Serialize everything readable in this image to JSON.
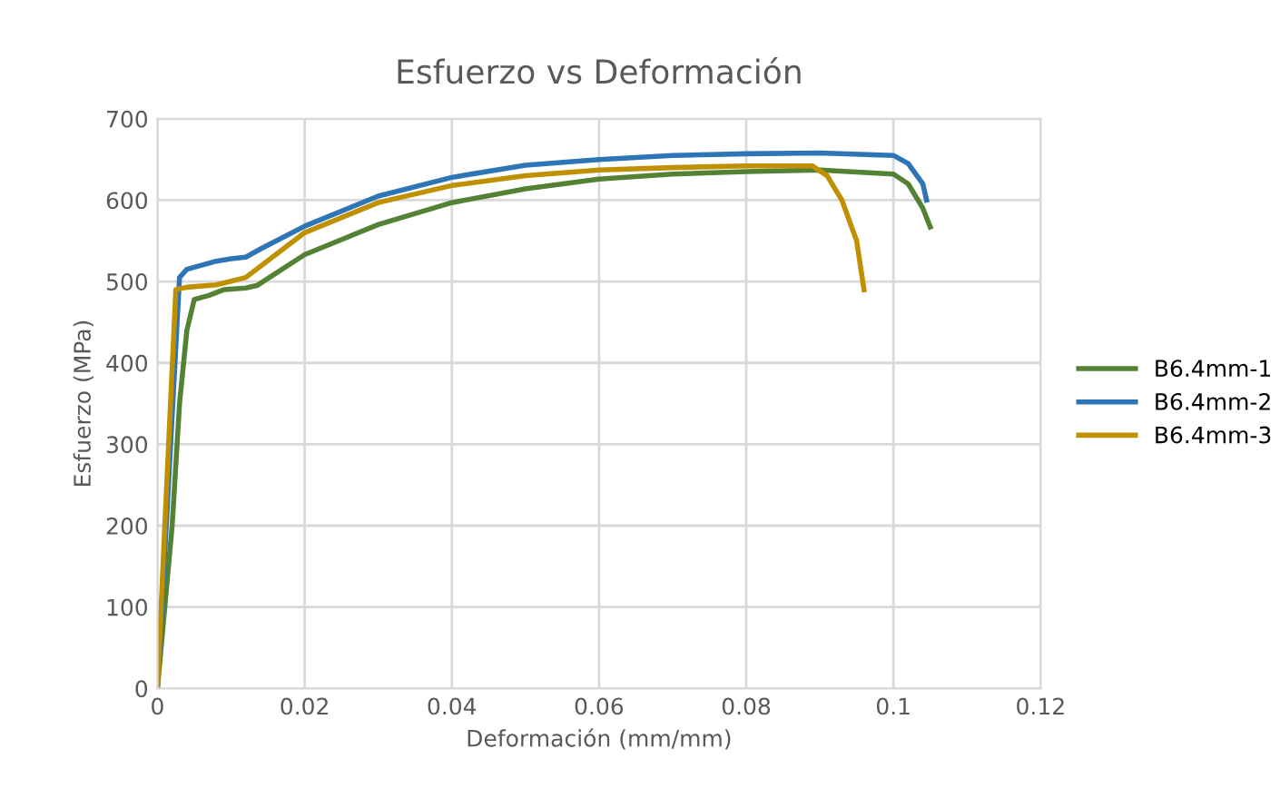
{
  "chart_data": {
    "type": "line",
    "title": "Esfuerzo vs Deformación",
    "xlabel": "Deformación (mm/mm)",
    "ylabel": "Esfuerzo (MPa)",
    "xlim": [
      0,
      0.12
    ],
    "xticks": [
      0,
      0.02,
      0.04,
      0.06,
      0.08,
      0.1,
      0.12
    ],
    "ylim": [
      0,
      700
    ],
    "yticks": [
      0,
      100,
      200,
      300,
      400,
      500,
      600,
      700
    ],
    "grid": true,
    "legend": "right",
    "marker": "none",
    "line_style": "solid",
    "series": [
      {
        "name": "B6.4mm-1",
        "color": "#548235",
        "x": [
          0,
          0.002,
          0.003,
          0.004,
          0.005,
          0.007,
          0.009,
          0.012,
          0.0135,
          0.02,
          0.03,
          0.04,
          0.05,
          0.06,
          0.07,
          0.08,
          0.09,
          0.1,
          0.102,
          0.104,
          0.105
        ],
        "values": [
          0,
          200,
          350,
          440,
          478,
          483,
          490,
          492,
          495,
          533,
          570,
          597,
          614,
          626,
          632,
          635,
          637,
          632,
          620,
          590,
          567
        ]
      },
      {
        "name": "B6.4mm-2",
        "color": "#2e75b6",
        "x": [
          0,
          0.0015,
          0.003,
          0.004,
          0.006,
          0.008,
          0.01,
          0.012,
          0.014,
          0.02,
          0.03,
          0.04,
          0.05,
          0.06,
          0.07,
          0.08,
          0.09,
          0.1,
          0.102,
          0.104,
          0.1045
        ],
        "values": [
          0,
          250,
          505,
          515,
          520,
          525,
          528,
          530,
          540,
          568,
          605,
          628,
          643,
          650,
          655,
          657,
          658,
          655,
          645,
          620,
          600
        ]
      },
      {
        "name": "B6.4mm-3",
        "color": "#bf9000",
        "x": [
          0,
          0.001,
          0.0025,
          0.004,
          0.008,
          0.012,
          0.02,
          0.03,
          0.04,
          0.05,
          0.06,
          0.07,
          0.08,
          0.089,
          0.091,
          0.093,
          0.095,
          0.096
        ],
        "values": [
          0,
          200,
          490,
          493,
          496,
          505,
          560,
          597,
          618,
          630,
          637,
          640,
          642,
          642,
          630,
          600,
          550,
          490
        ]
      }
    ]
  }
}
